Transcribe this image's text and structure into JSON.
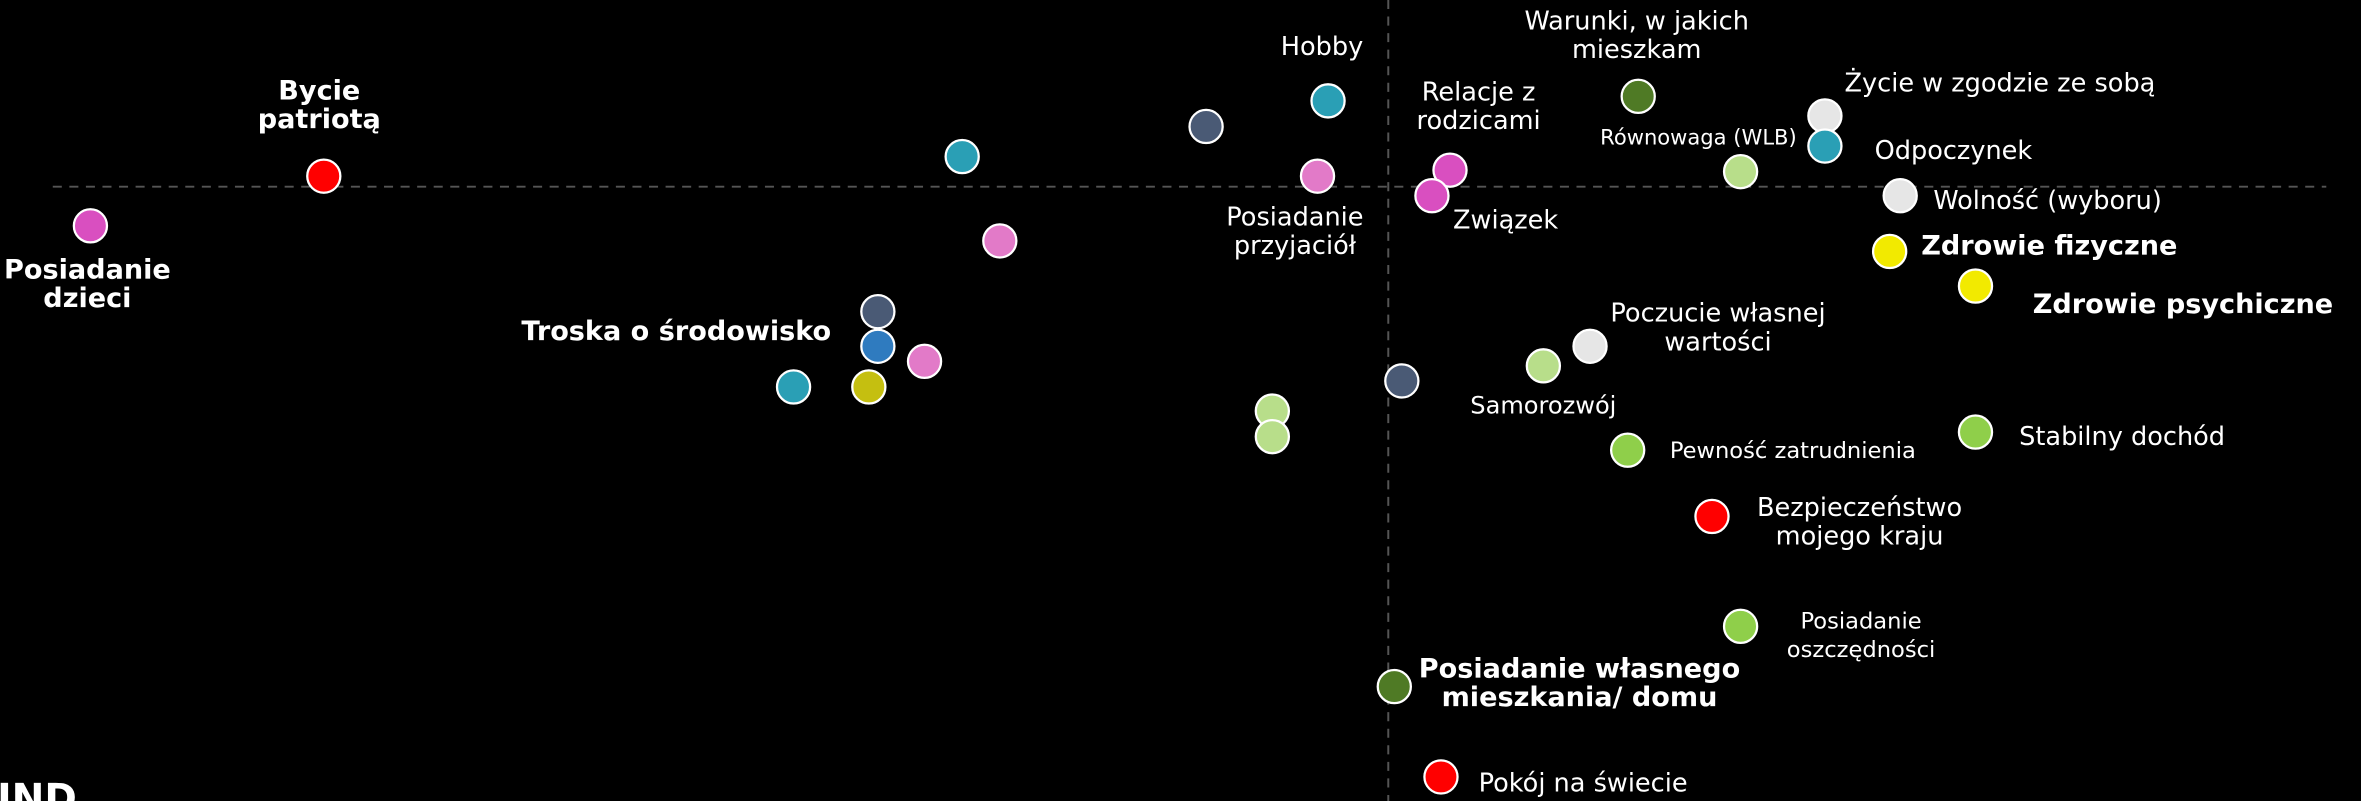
{
  "chart_data": {
    "type": "scatter",
    "xlim": [
      -922,
      646
    ],
    "ylim": [
      -408,
      124
    ],
    "brand": "IND",
    "points": [
      {
        "label": [
          "Posiadanie",
          "dzieci"
        ],
        "x": -862,
        "y": -26,
        "color": "#d94fc0",
        "bold": true
      },
      {
        "label": [
          "Bycie",
          "patriotą"
        ],
        "x": -707,
        "y": 7,
        "color": "#ff0000",
        "bold": true
      },
      {
        "label": null,
        "x": -283,
        "y": 20,
        "color": "#2a9fb5"
      },
      {
        "label": null,
        "x": -258,
        "y": -36,
        "color": "#e27ac8"
      },
      {
        "label": null,
        "x": -339,
        "y": -83,
        "color": "#4a5a75"
      },
      {
        "label": [
          "Troska o środowisko"
        ],
        "x": -339,
        "y": -106,
        "color": "#2f7bbf",
        "bold": true
      },
      {
        "label": null,
        "x": -308,
        "y": -116,
        "color": "#e27ac8"
      },
      {
        "label": null,
        "x": -395,
        "y": -133,
        "color": "#2a9fb5"
      },
      {
        "label": null,
        "x": -345,
        "y": -133,
        "color": "#c5bf10"
      },
      {
        "label": null,
        "x": -121,
        "y": 40,
        "color": "#4a5a75"
      },
      {
        "label": [
          "Hobby"
        ],
        "x": -40,
        "y": 57,
        "color": "#2a9fb5"
      },
      {
        "label": [
          "Posiadanie",
          "przyjaciół"
        ],
        "x": -47,
        "y": 7,
        "color": "#e27ac8"
      },
      {
        "label": null,
        "x": -77,
        "y": -149,
        "color": "#b8de8a"
      },
      {
        "label": null,
        "x": -77,
        "y": -166,
        "color": "#b8de8a"
      },
      {
        "label": null,
        "x": 9,
        "y": -129,
        "color": "#4a5a75"
      },
      {
        "label": [
          "Relacje z",
          "rodzicami"
        ],
        "x": 41,
        "y": 11,
        "color": "#d94fc0"
      },
      {
        "label": [
          "Związek"
        ],
        "x": 29,
        "y": -6,
        "color": "#d94fc0"
      },
      {
        "label": [
          "Warunki, w jakich",
          "mieszkam"
        ],
        "x": 166,
        "y": 60,
        "color": "#4f7a25"
      },
      {
        "label": [
          "Równowaga (WLB)"
        ],
        "x": 234,
        "y": 10,
        "color": "#b8de8a"
      },
      {
        "label": [
          "Życie w zgodzie ze sobą"
        ],
        "x": 290,
        "y": 47,
        "color": "#e6e6e6"
      },
      {
        "label": [
          "Odpoczynek"
        ],
        "x": 290,
        "y": 27,
        "color": "#2a9fb5"
      },
      {
        "label": [
          "Wolność (wyboru)"
        ],
        "x": 340,
        "y": -6,
        "color": "#e6e6e6"
      },
      {
        "label": [
          "Zdrowie fizyczne"
        ],
        "x": 333,
        "y": -43,
        "color": "#f2ea00",
        "bold": true
      },
      {
        "label": [
          "Zdrowie psychiczne"
        ],
        "x": 390,
        "y": -66,
        "color": "#f2ea00",
        "bold": true
      },
      {
        "label": [
          "Poczucie własnej",
          "wartości"
        ],
        "x": 134,
        "y": -106,
        "color": "#e6e6e6"
      },
      {
        "label": [
          "Samorozwój"
        ],
        "x": 103,
        "y": -119,
        "color": "#b8de8a"
      },
      {
        "label": [
          "Pewność zatrudnienia"
        ],
        "x": 159,
        "y": -175,
        "color": "#8fcf4a"
      },
      {
        "label": [
          "Stabilny dochód"
        ],
        "x": 390,
        "y": -163,
        "color": "#8fcf4a"
      },
      {
        "label": [
          "Bezpieczeństwo",
          "mojego kraju"
        ],
        "x": 215,
        "y": -219,
        "color": "#ff0000"
      },
      {
        "label": [
          "Posiadanie",
          "oszczędności"
        ],
        "x": 234,
        "y": -292,
        "color": "#8fcf4a"
      },
      {
        "label": [
          "Posiadanie własnego",
          "mieszkania/ domu"
        ],
        "x": 4,
        "y": -332,
        "color": "#4f7a25",
        "bold": true
      },
      {
        "label": [
          "Pokój na świecie"
        ],
        "x": 35,
        "y": -392,
        "color": "#ff0000"
      }
    ]
  }
}
